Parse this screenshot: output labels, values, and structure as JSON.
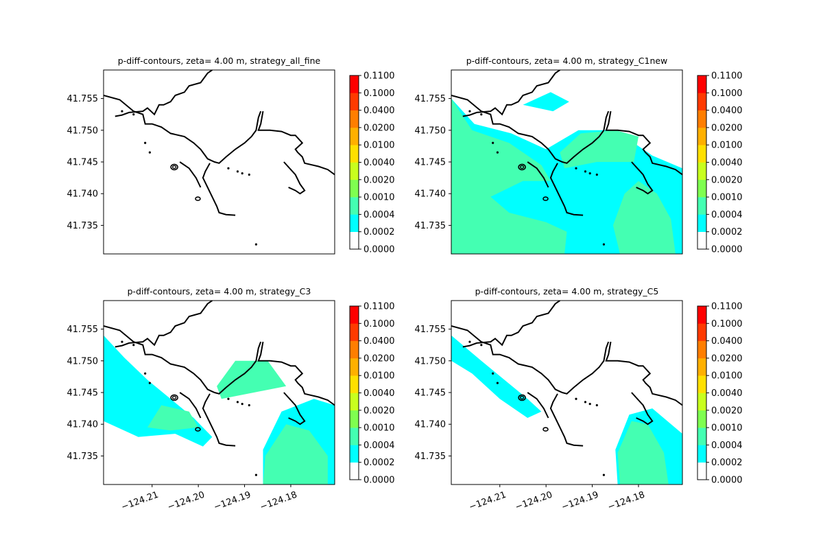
{
  "chart_data": [
    {
      "type": "heatmap",
      "title": "p-diff-contours, zeta= 4.00 m, strategy_all_fine",
      "ylim": [
        41.7305,
        41.7595
      ],
      "xlim": [
        -124.2205,
        -124.1705
      ],
      "yticks": [
        "41.735",
        "41.740",
        "41.745",
        "41.750",
        "41.755"
      ],
      "xticks": [],
      "xtick_labels_shown": false,
      "colorbar": {
        "levels": [
          "0.0000",
          "0.0002",
          "0.0004",
          "0.0010",
          "0.0020",
          "0.0040",
          "0.0100",
          "0.0200",
          "0.0400",
          "0.1000",
          "0.1100"
        ]
      },
      "filled_regions": []
    },
    {
      "type": "heatmap",
      "title": "p-diff-contours, zeta= 4.00 m, strategy_C1new",
      "ylim": [
        41.7305,
        41.7595
      ],
      "xlim": [
        -124.2205,
        -124.1705
      ],
      "yticks": [
        "41.735",
        "41.740",
        "41.745",
        "41.750",
        "41.755"
      ],
      "xticks": [],
      "xtick_labels_shown": false,
      "colorbar": {
        "levels": [
          "0.0000",
          "0.0002",
          "0.0004",
          "0.0010",
          "0.0020",
          "0.0040",
          "0.0100",
          "0.0200",
          "0.0400",
          "0.1000",
          "0.1100"
        ]
      },
      "filled_regions": [
        {
          "level": "0.0002-0.0004",
          "color": "#00ffff",
          "polygon": [
            [
              -124.2205,
              41.755
            ],
            [
              -124.2155,
              41.751
            ],
            [
              -124.2075,
              41.7495
            ],
            [
              -124.2,
              41.747
            ],
            [
              -124.193,
              41.75
            ],
            [
              -124.185,
              41.75
            ],
            [
              -124.177,
              41.746
            ],
            [
              -124.1705,
              41.744
            ],
            [
              -124.1705,
              41.7305
            ],
            [
              -124.2205,
              41.7305
            ]
          ]
        },
        {
          "level": "0.0002-0.0004",
          "color": "#00ffff",
          "polygon": [
            [
              -124.205,
              41.754
            ],
            [
              -124.199,
              41.756
            ],
            [
              -124.195,
              41.7545
            ],
            [
              -124.1985,
              41.753
            ]
          ]
        },
        {
          "level": "0.0004-0.0010",
          "color": "#44ffb2",
          "polygon": [
            [
              -124.2205,
              41.755
            ],
            [
              -124.216,
              41.75
            ],
            [
              -124.208,
              41.748
            ],
            [
              -124.201,
              41.7445
            ],
            [
              -124.199,
              41.742
            ],
            [
              -124.205,
              41.742
            ],
            [
              -124.212,
              41.7395
            ],
            [
              -124.208,
              41.737
            ],
            [
              -124.2,
              41.7355
            ],
            [
              -124.1955,
              41.734
            ],
            [
              -124.196,
              41.7305
            ],
            [
              -124.2205,
              41.7305
            ]
          ]
        },
        {
          "level": "0.0004-0.0010",
          "color": "#44ffb2",
          "polygon": [
            [
              -124.197,
              41.7465
            ],
            [
              -124.1925,
              41.7495
            ],
            [
              -124.185,
              41.75
            ],
            [
              -124.18,
              41.749
            ],
            [
              -124.181,
              41.745
            ],
            [
              -124.189,
              41.745
            ],
            [
              -124.196,
              41.744
            ]
          ]
        },
        {
          "level": "0.0004-0.0010",
          "color": "#44ffb2",
          "polygon": [
            [
              -124.18,
              41.742
            ],
            [
              -124.176,
              41.74
            ],
            [
              -124.173,
              41.736
            ],
            [
              -124.172,
              41.7305
            ],
            [
              -124.184,
              41.7305
            ],
            [
              -124.1855,
              41.735
            ],
            [
              -124.183,
              41.74
            ]
          ]
        }
      ]
    },
    {
      "type": "heatmap",
      "title": "p-diff-contours, zeta= 4.00 m, strategy_C3",
      "ylim": [
        41.7305,
        41.7595
      ],
      "xlim": [
        -124.2205,
        -124.1705
      ],
      "yticks": [
        "41.735",
        "41.740",
        "41.745",
        "41.750",
        "41.755"
      ],
      "xticks": [
        "−124.21",
        "−124.20",
        "−124.19",
        "−124.18"
      ],
      "xtick_values": [
        -124.21,
        -124.2,
        -124.19,
        -124.18
      ],
      "xtick_labels_shown": true,
      "colorbar": {
        "levels": [
          "0.0000",
          "0.0002",
          "0.0004",
          "0.0010",
          "0.0020",
          "0.0040",
          "0.0100",
          "0.0200",
          "0.0400",
          "0.1000",
          "0.1100"
        ]
      },
      "filled_regions": [
        {
          "level": "0.0002-0.0004",
          "color": "#00ffff",
          "polygon": [
            [
              -124.2205,
              41.754
            ],
            [
              -124.216,
              41.7505
            ],
            [
              -124.211,
              41.747
            ],
            [
              -124.206,
              41.744
            ],
            [
              -124.201,
              41.741
            ],
            [
              -124.197,
              41.738
            ],
            [
              -124.199,
              41.7365
            ],
            [
              -124.205,
              41.7385
            ],
            [
              -124.213,
              41.738
            ],
            [
              -124.2205,
              41.7405
            ]
          ]
        },
        {
          "level": "0.0004-0.0010",
          "color": "#44ffb2",
          "polygon": [
            [
              -124.208,
              41.743
            ],
            [
              -124.202,
              41.742
            ],
            [
              -124.2,
              41.7395
            ],
            [
              -124.206,
              41.739
            ],
            [
              -124.211,
              41.7395
            ]
          ]
        },
        {
          "level": "0.0004-0.0010",
          "color": "#44ffb2",
          "polygon": [
            [
              -124.196,
              41.746
            ],
            [
              -124.192,
              41.75
            ],
            [
              -124.185,
              41.75
            ],
            [
              -124.181,
              41.746
            ],
            [
              -124.188,
              41.745
            ],
            [
              -124.195,
              41.744
            ]
          ]
        },
        {
          "level": "0.0002-0.0004",
          "color": "#00ffff",
          "polygon": [
            [
              -124.182,
              41.742
            ],
            [
              -124.175,
              41.744
            ],
            [
              -124.1705,
              41.743
            ],
            [
              -124.1705,
              41.7305
            ],
            [
              -124.186,
              41.7305
            ],
            [
              -124.186,
              41.736
            ]
          ]
        },
        {
          "level": "0.0004-0.0010",
          "color": "#44ffb2",
          "polygon": [
            [
              -124.181,
              41.74
            ],
            [
              -124.176,
              41.739
            ],
            [
              -124.172,
              41.735
            ],
            [
              -124.172,
              41.7305
            ],
            [
              -124.186,
              41.7305
            ],
            [
              -124.1855,
              41.735
            ]
          ]
        }
      ]
    },
    {
      "type": "heatmap",
      "title": "p-diff-contours, zeta= 4.00 m, strategy_C5",
      "ylim": [
        41.7305,
        41.7595
      ],
      "xlim": [
        -124.2205,
        -124.1705
      ],
      "yticks": [
        "41.735",
        "41.740",
        "41.745",
        "41.750",
        "41.755"
      ],
      "xticks": [
        "−124.21",
        "−124.20",
        "−124.19",
        "−124.18"
      ],
      "xtick_values": [
        -124.21,
        -124.2,
        -124.19,
        -124.18
      ],
      "xtick_labels_shown": true,
      "colorbar": {
        "levels": [
          "0.0000",
          "0.0002",
          "0.0004",
          "0.0010",
          "0.0020",
          "0.0040",
          "0.0100",
          "0.0200",
          "0.0400",
          "0.1000",
          "0.1100"
        ]
      },
      "filled_regions": [
        {
          "level": "0.0002-0.0004",
          "color": "#00ffff",
          "polygon": [
            [
              -124.2205,
              41.754
            ],
            [
              -124.214,
              41.75
            ],
            [
              -124.209,
              41.747
            ],
            [
              -124.204,
              41.744
            ],
            [
              -124.201,
              41.742
            ],
            [
              -124.204,
              41.741
            ],
            [
              -124.21,
              41.744
            ],
            [
              -124.216,
              41.748
            ],
            [
              -124.2205,
              41.75
            ]
          ]
        },
        {
          "level": "0.0002-0.0004",
          "color": "#00ffff",
          "polygon": [
            [
              -124.182,
              41.7415
            ],
            [
              -124.177,
              41.7425
            ],
            [
              -124.1705,
              41.7385
            ],
            [
              -124.1705,
              41.7305
            ],
            [
              -124.1845,
              41.7305
            ],
            [
              -124.185,
              41.736
            ]
          ]
        },
        {
          "level": "0.0004-0.0010",
          "color": "#44ffb2",
          "polygon": [
            [
              -124.1815,
              41.7405
            ],
            [
              -124.178,
              41.74
            ],
            [
              -124.1745,
              41.7355
            ],
            [
              -124.1735,
              41.7305
            ],
            [
              -124.184,
              41.7305
            ],
            [
              -124.1845,
              41.7355
            ]
          ]
        }
      ]
    }
  ]
}
